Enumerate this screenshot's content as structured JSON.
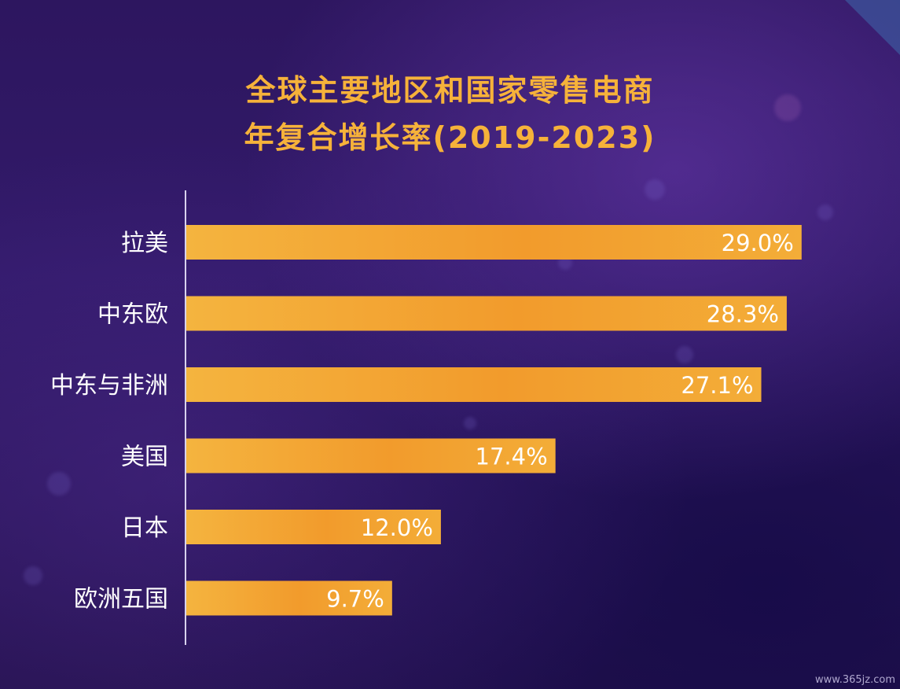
{
  "title_line1": "全球主要地区和国家零售电商",
  "title_line2": "年复合增长率(2019-2023)",
  "watermark": "www.365jz.com",
  "colors": {
    "bar_start": "#f3b13d",
    "bar_mid": "#f29c2f",
    "title": "#f6b23a",
    "label": "#ffffff",
    "axis": "#d8d2ee"
  },
  "chart_data": {
    "type": "bar",
    "orientation": "horizontal",
    "categories": [
      "拉美",
      "中东欧",
      "中东与非洲",
      "美国",
      "日本",
      "欧洲五国"
    ],
    "values": [
      29.0,
      28.3,
      27.1,
      17.4,
      12.0,
      9.7
    ],
    "value_labels": [
      "29.0%",
      "28.3%",
      "27.1%",
      "17.4%",
      "12.0%",
      "9.7%"
    ],
    "title": "全球主要地区和国家零售电商 年复合增长率(2019-2023)",
    "xlabel": "",
    "ylabel": "",
    "xlim": [
      0,
      30.6
    ],
    "grid": false,
    "legend": "none"
  }
}
